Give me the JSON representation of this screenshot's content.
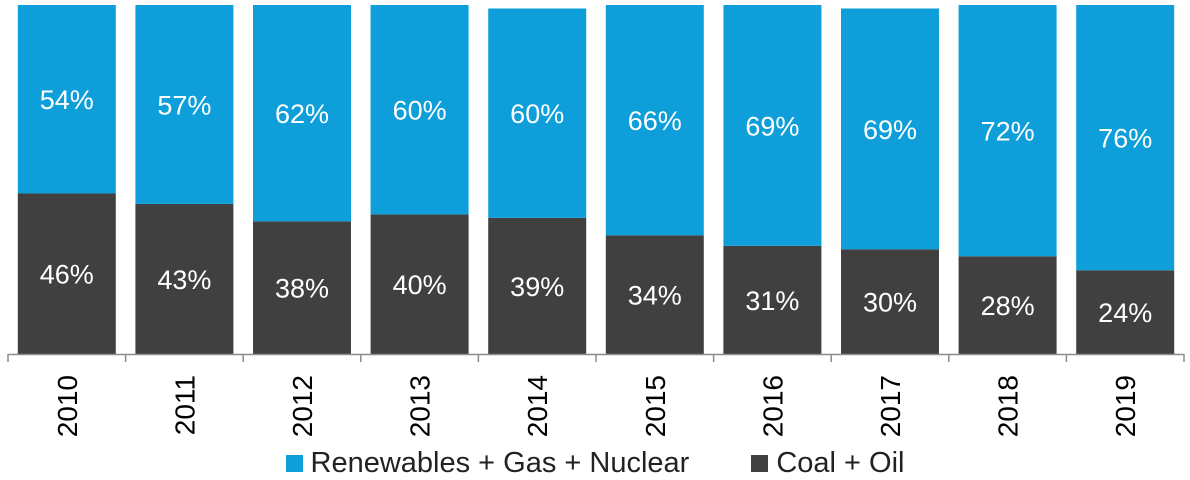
{
  "chart_data": {
    "type": "bar",
    "stacked": true,
    "categories": [
      "2010",
      "2011",
      "2012",
      "2013",
      "2014",
      "2015",
      "2016",
      "2017",
      "2018",
      "2019"
    ],
    "series": [
      {
        "name": "Coal + Oil",
        "color": "#404040",
        "values": [
          46,
          43,
          38,
          40,
          39,
          34,
          31,
          30,
          28,
          24
        ],
        "labels": [
          "46%",
          "43%",
          "38%",
          "40%",
          "39%",
          "34%",
          "31%",
          "30%",
          "28%",
          "24%"
        ]
      },
      {
        "name": "Renewables + Gas + Nuclear",
        "color": "#0e9fda",
        "values": [
          54,
          57,
          62,
          60,
          60,
          66,
          69,
          69,
          72,
          76
        ],
        "labels": [
          "54%",
          "57%",
          "62%",
          "60%",
          "60%",
          "66%",
          "69%",
          "69%",
          "72%",
          "76%"
        ]
      }
    ],
    "ylim": [
      0,
      100
    ],
    "grid": false,
    "legend_position": "bottom"
  }
}
